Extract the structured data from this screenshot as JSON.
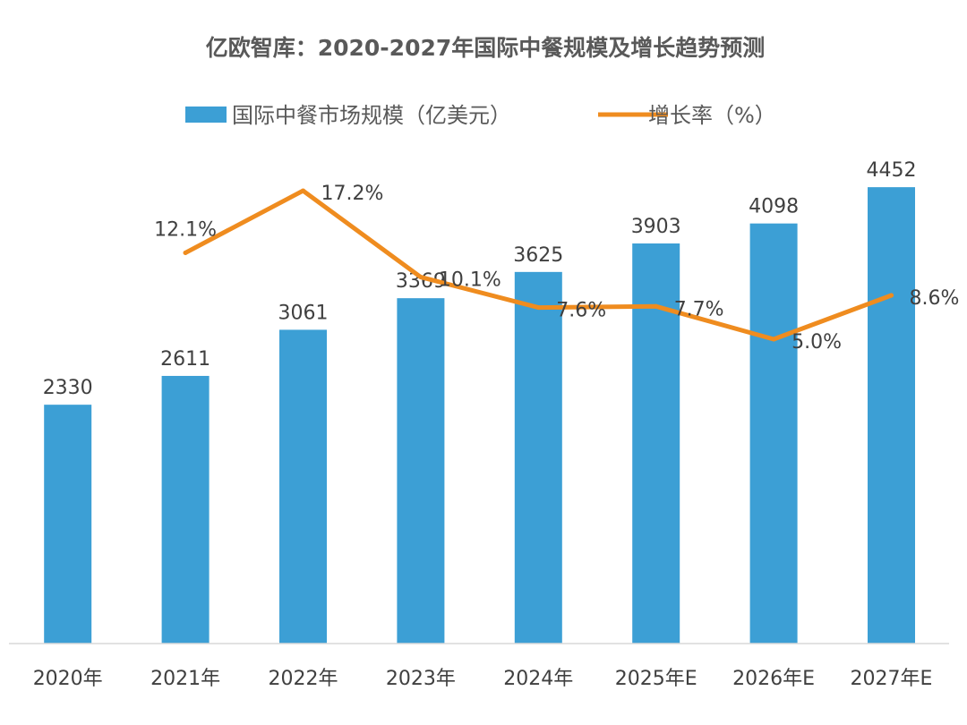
{
  "colors": {
    "bar": "#3c9fd5",
    "line": "#ef8c1f",
    "axis": "#d9d9d9",
    "text": "#404040",
    "title": "#595959"
  },
  "chart_data": {
    "type": "bar+line",
    "title": "亿欧智库：2020-2027年国际中餐规模及增长趋势预测",
    "categories": [
      "2020年",
      "2021年",
      "2022年",
      "2023年",
      "2024年",
      "2025年E",
      "2026年E",
      "2027年E"
    ],
    "series": [
      {
        "name": "国际中餐市场规模（亿美元）",
        "kind": "bar",
        "axis": "left",
        "values": [
          2330,
          2611,
          3061,
          3369,
          3625,
          3903,
          4098,
          4452
        ],
        "labels": [
          "2330",
          "2611",
          "3061",
          "3369",
          "3625",
          "3903",
          "4098",
          "4452"
        ]
      },
      {
        "name": "增长率（%）",
        "kind": "line",
        "axis": "right",
        "values": [
          null,
          12.1,
          17.2,
          10.1,
          7.6,
          7.7,
          5.0,
          8.6
        ],
        "labels": [
          "",
          "12.1%",
          "17.2%",
          "10.1%",
          "7.6%",
          "7.7%",
          "5.0%",
          "8.6%"
        ]
      }
    ],
    "ylim_left": [
      0,
      4750
    ],
    "ylim_right": [
      -20,
      20
    ],
    "legend_position": "top-center",
    "grid": false
  }
}
